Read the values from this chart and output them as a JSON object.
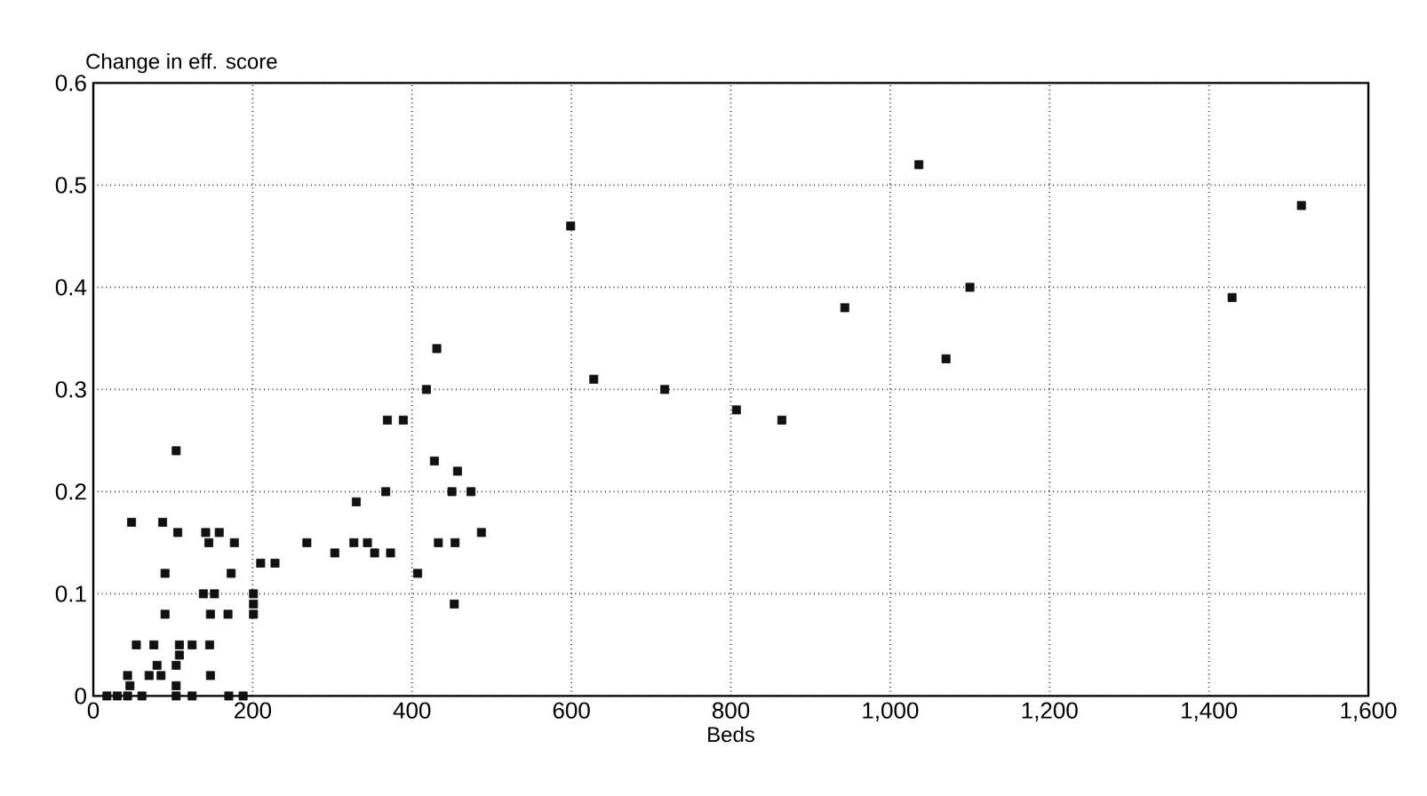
{
  "chart_data": {
    "type": "scatter",
    "xlabel": "Beds",
    "ylabel": "Change in eff. score",
    "x": [
      104,
      48,
      87,
      106,
      141,
      158,
      145,
      177,
      90,
      173,
      138,
      152,
      201,
      201,
      201,
      90,
      147,
      169,
      54,
      76,
      108,
      124,
      146,
      108,
      80,
      104,
      70,
      85,
      43,
      147,
      46,
      104,
      17,
      30,
      43,
      61,
      104,
      124,
      170,
      188,
      210,
      228,
      431,
      418,
      369,
      389,
      628,
      717,
      807,
      864,
      943,
      428,
      457,
      450,
      474,
      367,
      330,
      487,
      433,
      454,
      268,
      327,
      344,
      303,
      353,
      373,
      407,
      453,
      599,
      1036,
      1516,
      1100,
      1429,
      1070
    ],
    "values": [
      0.24,
      0.17,
      0.17,
      0.16,
      0.16,
      0.16,
      0.15,
      0.15,
      0.12,
      0.12,
      0.1,
      0.1,
      0.1,
      0.09,
      0.08,
      0.08,
      0.08,
      0.08,
      0.05,
      0.05,
      0.05,
      0.05,
      0.05,
      0.04,
      0.03,
      0.03,
      0.02,
      0.02,
      0.02,
      0.02,
      0.01,
      0.01,
      0,
      0,
      0,
      0,
      0,
      0,
      0,
      0,
      0.13,
      0.13,
      0.34,
      0.3,
      0.27,
      0.27,
      0.31,
      0.3,
      0.28,
      0.27,
      0.38,
      0.23,
      0.22,
      0.2,
      0.2,
      0.2,
      0.19,
      0.16,
      0.15,
      0.15,
      0.15,
      0.15,
      0.15,
      0.14,
      0.14,
      0.14,
      0.12,
      0.09,
      0.46,
      0.52,
      0.48,
      0.4,
      0.39,
      0.33
    ],
    "color": "#111111",
    "marker": "square",
    "grid": true,
    "xlim": [
      0,
      1600
    ],
    "ylim": [
      0,
      0.6
    ],
    "xticks": [
      0,
      200,
      400,
      600,
      800,
      {
        "value": 1000,
        "label": "1,000"
      },
      {
        "value": 1200,
        "label": "1,200"
      },
      {
        "value": 1400,
        "label": "1,400"
      },
      {
        "value": 1600,
        "label": "1,600"
      }
    ],
    "yticks": [
      0,
      0.1,
      0.2,
      0.3,
      0.4,
      0.5,
      0.6
    ]
  }
}
